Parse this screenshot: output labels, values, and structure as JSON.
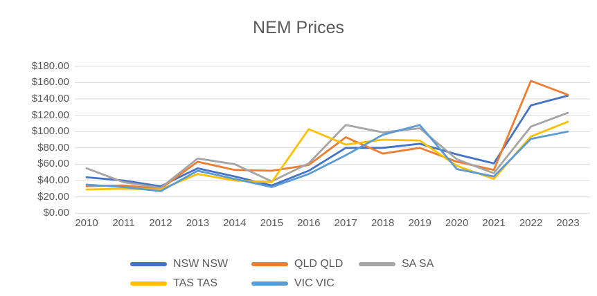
{
  "chart_data": {
    "type": "line",
    "title": "NEM Prices",
    "categories": [
      "2010",
      "2011",
      "2012",
      "2013",
      "2014",
      "2015",
      "2016",
      "2017",
      "2018",
      "2019",
      "2020",
      "2021",
      "2022",
      "2023"
    ],
    "series": [
      {
        "name": "NSW NSW",
        "color": "#4472C4",
        "values": [
          44,
          40,
          33,
          55,
          45,
          34,
          52,
          80,
          80,
          85,
          72,
          61,
          132,
          144
        ]
      },
      {
        "name": "QLD QLD",
        "color": "#ED7D31",
        "values": [
          33,
          34,
          30,
          63,
          53,
          52,
          59,
          93,
          73,
          80,
          63,
          53,
          162,
          145
        ]
      },
      {
        "name": "SA SA",
        "color": "#A5A5A5",
        "values": [
          55,
          38,
          31,
          67,
          60,
          39,
          61,
          108,
          99,
          104,
          66,
          49,
          106,
          123
        ]
      },
      {
        "name": "TAS TAS",
        "color": "#FFC000",
        "values": [
          29,
          30,
          29,
          48,
          40,
          38,
          103,
          84,
          90,
          89,
          58,
          42,
          94,
          112
        ]
      },
      {
        "name": "VIC VIC",
        "color": "#5B9BD5",
        "values": [
          35,
          32,
          27,
          52,
          42,
          32,
          48,
          71,
          96,
          108,
          54,
          45,
          91,
          100
        ]
      }
    ],
    "xlabel": "",
    "ylabel": "",
    "ylim": [
      0,
      180
    ],
    "y_tick_step": 20,
    "y_ticks": [
      "$0.00",
      "$20.00",
      "$40.00",
      "$60.00",
      "$80.00",
      "$100.00",
      "$120.00",
      "$140.00",
      "$160.00",
      "$180.00"
    ],
    "grid": true,
    "legend_position": "bottom",
    "legend_rows": [
      [
        0,
        1,
        2
      ],
      [
        3,
        4
      ]
    ]
  },
  "colors": {
    "text": "#595959",
    "gridline": "#D9D9D9",
    "background": "#FFFFFF"
  }
}
